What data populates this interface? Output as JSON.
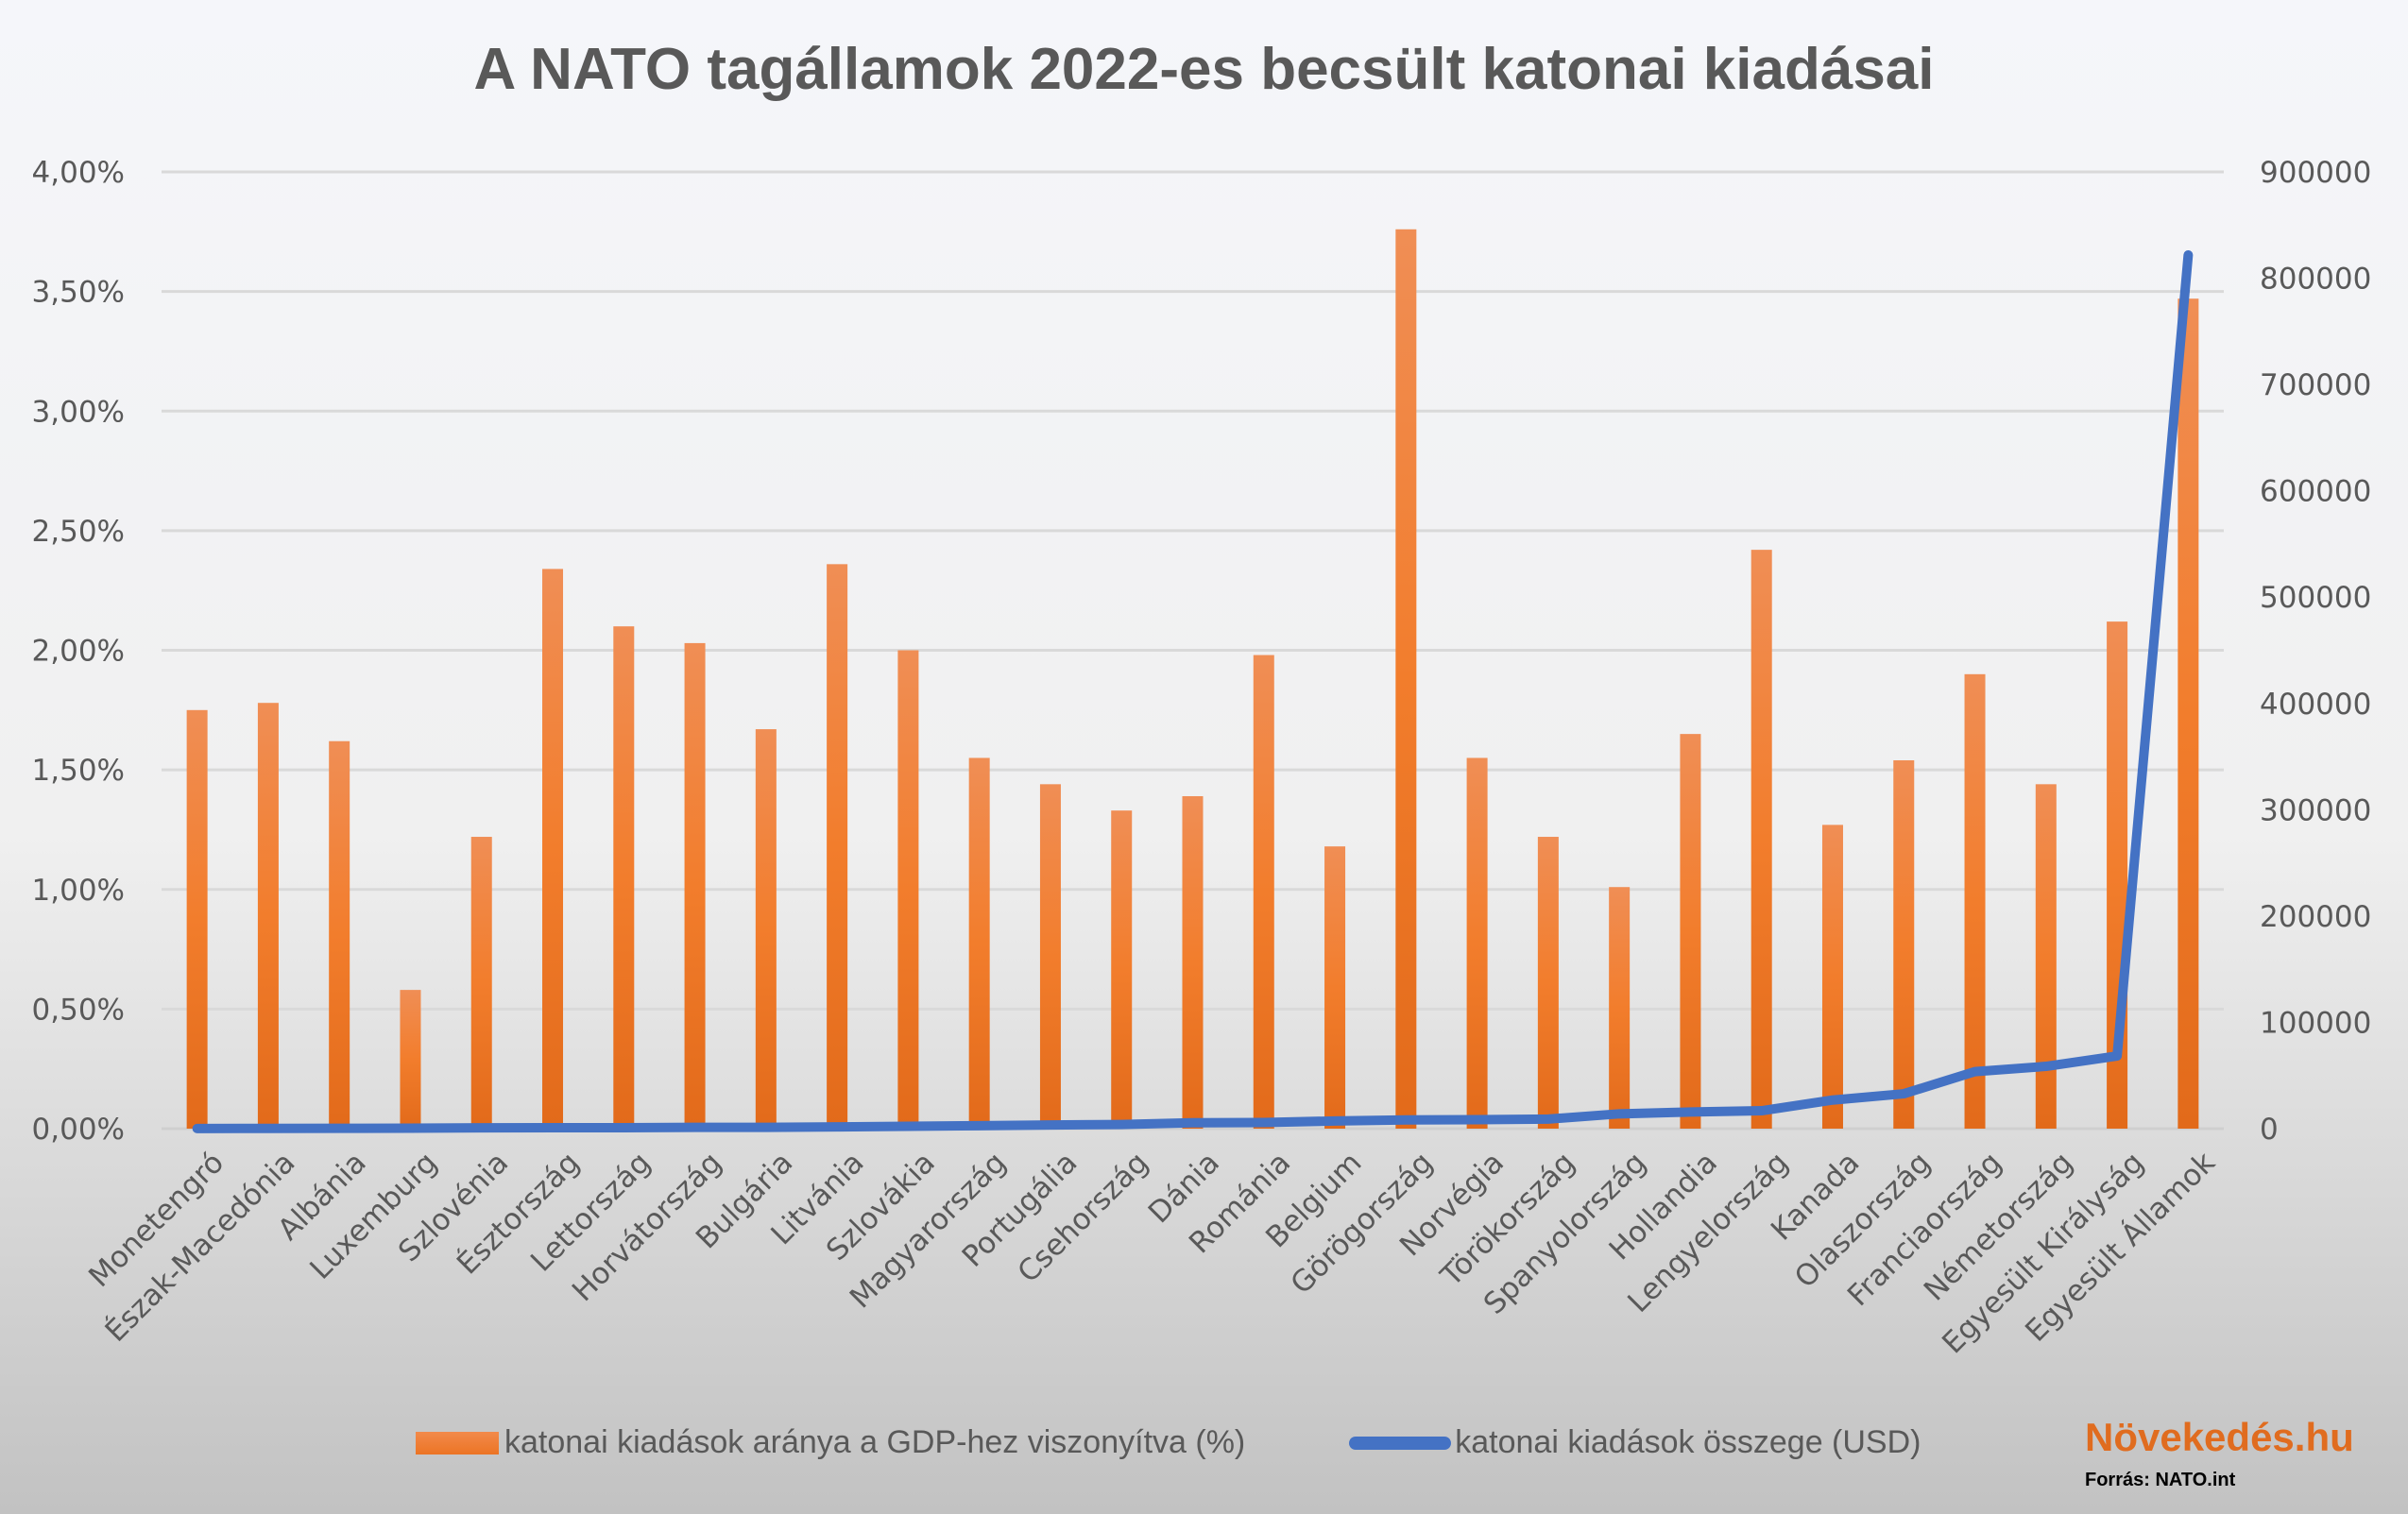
{
  "chart_data": {
    "type": "bar+line",
    "title": "A NATO tagállamok 2022-es becsült katonai kiadásai",
    "categories": [
      "Monetengró",
      "Észak-Macedónia",
      "Albánia",
      "Luxemburg",
      "Szlovénia",
      "Észtország",
      "Lettország",
      "Horvátország",
      "Bulgária",
      "Litvánia",
      "Szlovákia",
      "Magyarország",
      "Portugália",
      "Csehország",
      "Dánia",
      "Románia",
      "Belgium",
      "Görögország",
      "Norvégia",
      "Törökország",
      "Spanyolország",
      "Hollandia",
      "Lengyelország",
      "Kanada",
      "Olaszország",
      "Franciaország",
      "Németország",
      "Egyesült Királyság",
      "Egyesült Államok"
    ],
    "series": [
      {
        "name": "katonai kiadások aránya a GDP-hez viszonyítva (%)",
        "type": "bar",
        "axis": "left",
        "color": "#ed7d31",
        "values": [
          1.75,
          1.78,
          1.62,
          0.58,
          1.22,
          2.34,
          2.1,
          2.03,
          1.67,
          2.36,
          2.0,
          1.55,
          1.44,
          1.33,
          1.39,
          1.98,
          1.18,
          3.76,
          1.55,
          1.22,
          1.01,
          1.65,
          2.42,
          1.27,
          1.54,
          1.9,
          1.44,
          2.12,
          3.47
        ]
      },
      {
        "name": "katonai kiadások összege (USD)",
        "type": "line",
        "axis": "right",
        "color": "#4472c4",
        "values": [
          133,
          222,
          305,
          423,
          766,
          872,
          877,
          1235,
          1255,
          1663,
          2205,
          2784,
          3415,
          3908,
          5545,
          5806,
          7224,
          8204,
          8400,
          8993,
          13928,
          15631,
          16853,
          26896,
          32830,
          53638,
          58613,
          68376,
          821829
        ]
      }
    ],
    "left_axis": {
      "ylim": [
        0,
        4
      ],
      "ticks": [
        "0,00%",
        "0,50%",
        "1,00%",
        "1,50%",
        "2,00%",
        "2,50%",
        "3,00%",
        "3,50%",
        "4,00%"
      ]
    },
    "right_axis": {
      "ylim": [
        0,
        900000
      ],
      "ticks": [
        "0",
        "100000",
        "200000",
        "300000",
        "400000",
        "500000",
        "600000",
        "700000",
        "800000",
        "900000"
      ]
    },
    "grid": true,
    "legend": "bottom"
  },
  "brand": "Növekedés.hu",
  "source": "Forrás: NATO.int"
}
